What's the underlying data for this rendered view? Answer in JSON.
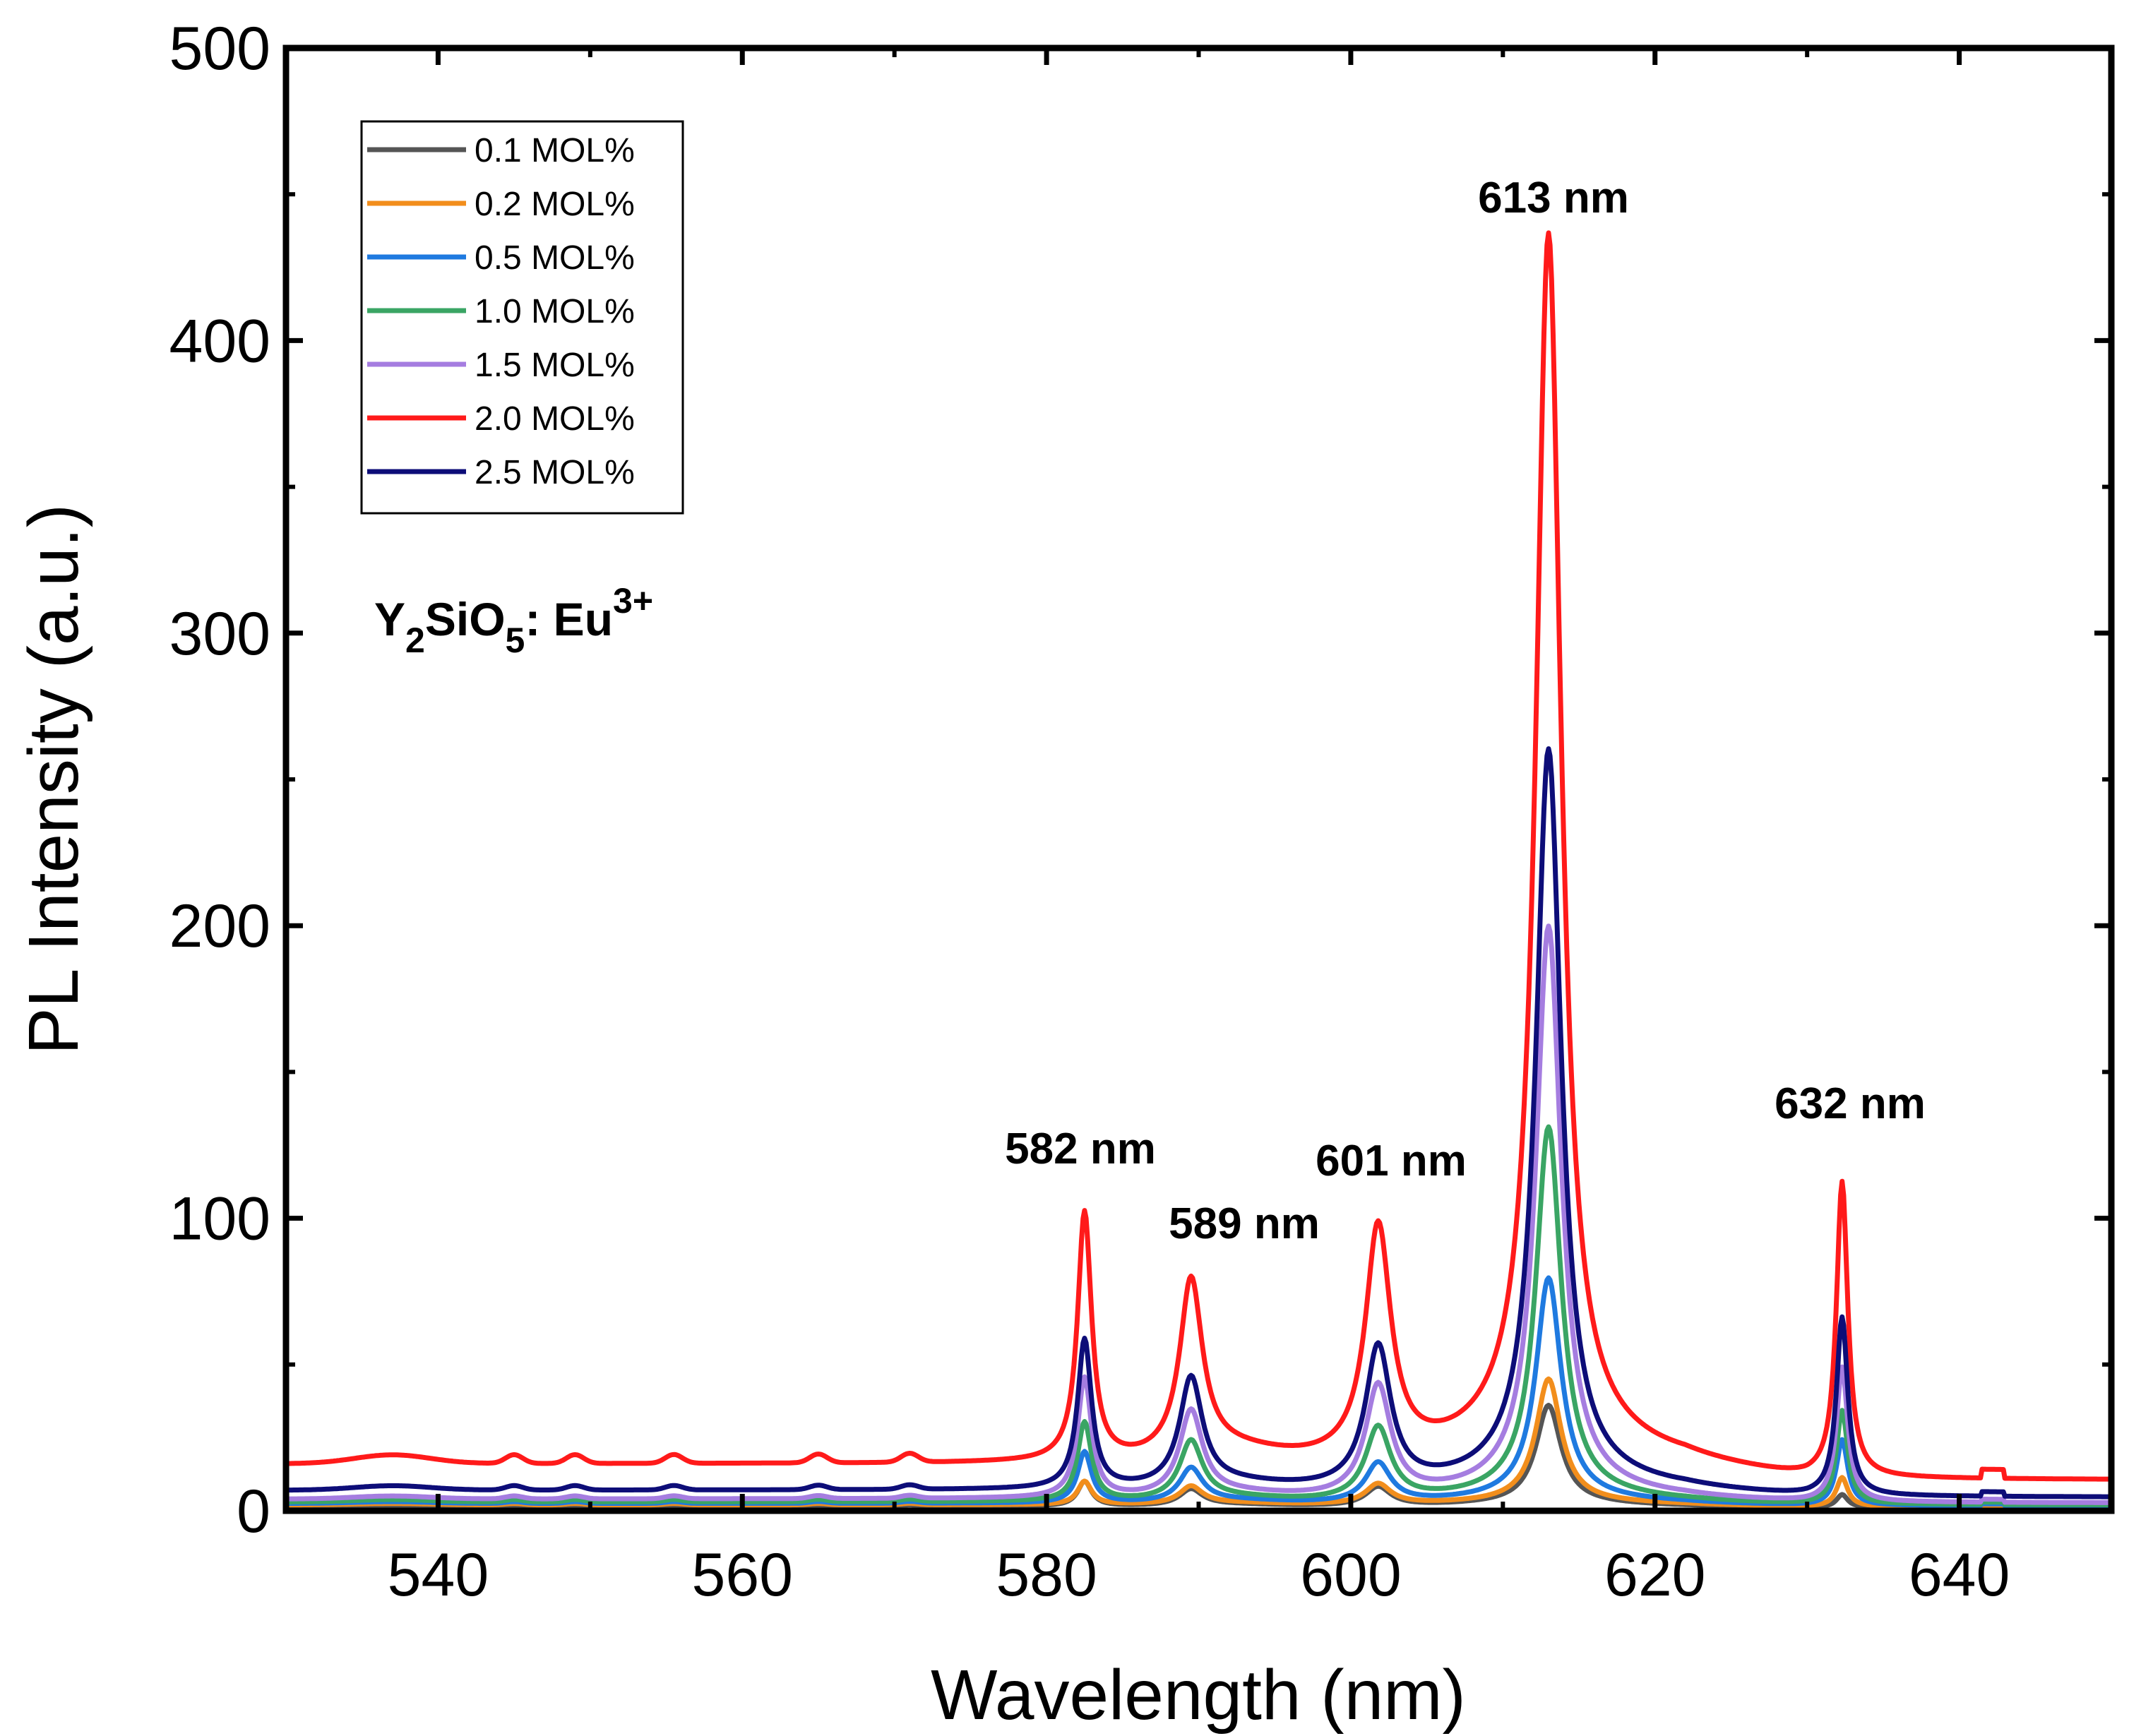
{
  "chart_data": {
    "type": "line",
    "title": "",
    "xlabel": "Wavelength (nm)",
    "ylabel": "PL Intensity (a.u.)",
    "xlim": [
      530,
      650
    ],
    "ylim": [
      0,
      500
    ],
    "xticks": [
      540,
      560,
      580,
      600,
      620,
      640
    ],
    "yticks": [
      0,
      100,
      200,
      300,
      400,
      500
    ],
    "grid": false,
    "legend_position": "top-left",
    "sample": {
      "base": "Y",
      "sub1": "2",
      "mid": "SiO",
      "sub2": "5",
      "tail": ": Eu",
      "sup": "3+"
    },
    "annotations": [
      {
        "text": "582 nm",
        "x": 582.5,
        "y": 100
      },
      {
        "text": "589 nm",
        "x": 589.5,
        "y": 75
      },
      {
        "text": "601 nm",
        "x": 601.8,
        "y": 95
      },
      {
        "text": "613 nm",
        "x": 613,
        "y": 430
      },
      {
        "text": "632 nm",
        "x": 632.3,
        "y": 117
      }
    ],
    "series": [
      {
        "name": "0.1 MOL%",
        "color": "#555555",
        "baseline": 1.5,
        "bump": 0.4,
        "shoulder": 1,
        "peaks": [
          10,
          7,
          8,
          35,
          6
        ]
      },
      {
        "name": "0.2 MOL%",
        "color": "#f28e1c",
        "baseline": 2,
        "bump": 0.5,
        "shoulder": 1,
        "peaks": [
          10,
          8,
          9,
          44,
          12
        ]
      },
      {
        "name": "0.5 MOL%",
        "color": "#1f7ae0",
        "baseline": 2.5,
        "bump": 0.6,
        "shoulder": 1.5,
        "peaks": [
          20,
          14,
          16,
          78,
          25
        ]
      },
      {
        "name": "1.0 MOL%",
        "color": "#3aa564",
        "baseline": 3,
        "bump": 0.8,
        "shoulder": 2,
        "peaks": [
          30,
          23,
          28,
          129,
          35
        ]
      },
      {
        "name": "1.5 MOL%",
        "color": "#a57de0",
        "baseline": 4,
        "bump": 1,
        "shoulder": 2.5,
        "peaks": [
          45,
          33,
          42,
          197,
          50
        ]
      },
      {
        "name": "2.0 MOL%",
        "color": "#ff1a1a",
        "baseline": 16,
        "bump": 3,
        "shoulder": 6,
        "peaks": [
          101,
          76,
          95,
          430,
          117
        ]
      },
      {
        "name": "2.5 MOL%",
        "color": "#0d0d78",
        "baseline": 7,
        "bump": 1.5,
        "shoulder": 3,
        "peaks": [
          58,
          44,
          55,
          257,
          68
        ]
      }
    ]
  }
}
